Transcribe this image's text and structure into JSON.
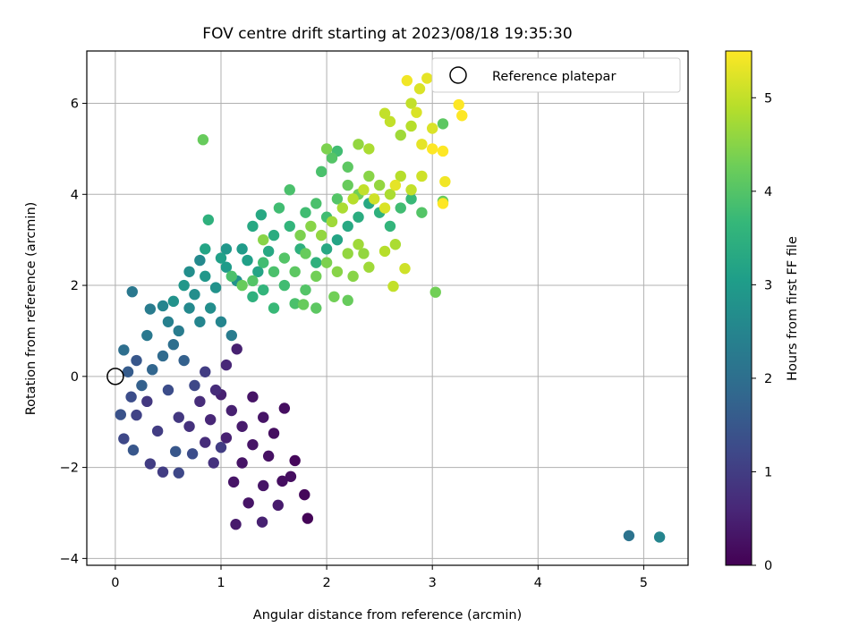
{
  "chart_data": {
    "type": "scatter",
    "title": "FOV centre drift starting at 2023/08/18 19:35:30",
    "xlabel": "Angular distance from reference (arcmin)",
    "ylabel": "Rotation from reference (arcmin)",
    "xlim": [
      -0.27,
      5.42
    ],
    "ylim": [
      -4.15,
      7.15
    ],
    "xticks": [
      0,
      1,
      2,
      3,
      4,
      5
    ],
    "yticks": [
      -4,
      -2,
      0,
      2,
      4,
      6
    ],
    "xtick_labels": [
      "0",
      "1",
      "2",
      "3",
      "4",
      "5"
    ],
    "ytick_labels": [
      "−4",
      "−2",
      "0",
      "2",
      "4",
      "6"
    ],
    "grid": true,
    "legend": {
      "placement": "top-right",
      "entries": [
        "Reference platepar"
      ]
    },
    "reference_point": {
      "x": 0,
      "y": 0,
      "label": "Reference platepar"
    },
    "colorbar": {
      "label": "Hours from first FF file",
      "colormap": "viridis",
      "range": [
        0,
        5.5
      ],
      "ticks": [
        0,
        1,
        2,
        3,
        4,
        5
      ],
      "tick_labels": [
        "0",
        "1",
        "2",
        "3",
        "4",
        "5"
      ],
      "stops": [
        "#440154",
        "#482878",
        "#3e4989",
        "#31688e",
        "#26828e",
        "#1f9e89",
        "#35b779",
        "#6ece58",
        "#b5de2b",
        "#fde725"
      ]
    },
    "series": [
      {
        "color_value_name": "Hours from first FF file",
        "points": [
          [
            0.83,
            5.2,
            4.2
          ],
          [
            1.79,
            -2.6,
            0.1
          ],
          [
            1.82,
            -3.12,
            0.05
          ],
          [
            1.14,
            -3.25,
            0.4
          ],
          [
            1.39,
            -3.2,
            0.5
          ],
          [
            1.54,
            -2.83,
            0.4
          ],
          [
            1.26,
            -2.78,
            0.3
          ],
          [
            1.12,
            -2.32,
            0.3
          ],
          [
            1.66,
            -2.2,
            0.2
          ],
          [
            1.7,
            -1.85,
            0.1
          ],
          [
            1.58,
            -2.3,
            0.2
          ],
          [
            1.4,
            -2.4,
            0.3
          ],
          [
            4.86,
            -3.5,
            2.1
          ],
          [
            5.15,
            -3.53,
            2.5
          ],
          [
            0.16,
            1.86,
            2.2
          ],
          [
            0.33,
            1.48,
            2.3
          ],
          [
            0.45,
            1.55,
            2.5
          ],
          [
            0.08,
            0.58,
            2.0
          ],
          [
            0.12,
            0.1,
            1.6
          ],
          [
            0.05,
            -0.84,
            1.4
          ],
          [
            0.08,
            -1.37,
            1.2
          ],
          [
            0.17,
            -1.62,
            1.5
          ],
          [
            0.33,
            -1.92,
            1.0
          ],
          [
            0.45,
            -2.1,
            1.0
          ],
          [
            0.6,
            -2.12,
            1.2
          ],
          [
            0.57,
            -1.65,
            1.5
          ],
          [
            0.73,
            -1.7,
            1.3
          ],
          [
            0.93,
            -1.9,
            0.8
          ],
          [
            1.0,
            -1.56,
            1.0
          ],
          [
            0.2,
            -0.85,
            1.1
          ],
          [
            0.3,
            -0.55,
            0.9
          ],
          [
            0.4,
            -1.2,
            1.0
          ],
          [
            0.5,
            -0.3,
            1.3
          ],
          [
            0.6,
            -0.9,
            0.9
          ],
          [
            0.7,
            -1.1,
            0.8
          ],
          [
            0.8,
            -0.55,
            0.7
          ],
          [
            0.9,
            -0.95,
            0.6
          ],
          [
            1.0,
            -0.4,
            0.5
          ],
          [
            1.1,
            -0.75,
            0.5
          ],
          [
            1.2,
            -1.1,
            0.4
          ],
          [
            1.3,
            -0.45,
            0.3
          ],
          [
            1.4,
            -0.9,
            0.3
          ],
          [
            1.5,
            -1.25,
            0.2
          ],
          [
            1.6,
            -0.7,
            0.2
          ],
          [
            1.3,
            -1.5,
            0.3
          ],
          [
            1.2,
            -1.9,
            0.3
          ],
          [
            1.45,
            -1.75,
            0.25
          ],
          [
            1.05,
            -1.35,
            0.5
          ],
          [
            0.85,
            -1.45,
            0.7
          ],
          [
            0.25,
            -0.2,
            1.7
          ],
          [
            0.35,
            0.15,
            1.8
          ],
          [
            0.45,
            0.45,
            1.9
          ],
          [
            0.55,
            0.7,
            2.0
          ],
          [
            0.65,
            0.35,
            1.7
          ],
          [
            0.75,
            -0.2,
            1.2
          ],
          [
            0.85,
            0.1,
            1.0
          ],
          [
            0.95,
            -0.3,
            0.7
          ],
          [
            1.05,
            0.25,
            0.6
          ],
          [
            1.15,
            0.6,
            0.5
          ],
          [
            0.2,
            0.35,
            1.5
          ],
          [
            0.15,
            -0.45,
            1.3
          ],
          [
            0.3,
            0.9,
            2.2
          ],
          [
            0.5,
            1.2,
            2.4
          ],
          [
            0.6,
            1.0,
            2.3
          ],
          [
            0.7,
            1.5,
            2.6
          ],
          [
            0.8,
            1.2,
            2.5
          ],
          [
            0.9,
            1.5,
            2.7
          ],
          [
            1.0,
            1.2,
            2.5
          ],
          [
            1.1,
            0.9,
            2.3
          ],
          [
            0.55,
            1.65,
            2.8
          ],
          [
            0.65,
            2.0,
            2.9
          ],
          [
            0.75,
            1.8,
            2.7
          ],
          [
            0.85,
            2.2,
            2.9
          ],
          [
            0.95,
            1.95,
            2.8
          ],
          [
            1.05,
            2.4,
            3.0
          ],
          [
            1.15,
            2.1,
            2.8
          ],
          [
            1.25,
            2.55,
            3.1
          ],
          [
            1.35,
            2.3,
            3.2
          ],
          [
            1.45,
            2.75,
            3.3
          ],
          [
            0.7,
            2.3,
            2.7
          ],
          [
            0.8,
            2.55,
            2.6
          ],
          [
            0.85,
            2.8,
            3.2
          ],
          [
            0.88,
            3.44,
            3.5
          ],
          [
            1.05,
            2.8,
            2.9
          ],
          [
            1.2,
            2.8,
            3.0
          ],
          [
            1.3,
            3.3,
            3.3
          ],
          [
            1.38,
            3.55,
            3.3
          ],
          [
            1.5,
            3.1,
            3.4
          ],
          [
            1.55,
            3.7,
            3.8
          ],
          [
            1.65,
            3.3,
            3.6
          ],
          [
            1.65,
            4.1,
            3.9
          ],
          [
            1.75,
            2.8,
            3.5
          ],
          [
            1.8,
            3.6,
            3.8
          ],
          [
            1.9,
            3.8,
            3.9
          ],
          [
            1.3,
            1.75,
            3.5
          ],
          [
            1.4,
            1.9,
            3.6
          ],
          [
            1.5,
            1.5,
            3.7
          ],
          [
            1.6,
            2.0,
            3.8
          ],
          [
            1.7,
            1.6,
            3.9
          ],
          [
            1.8,
            1.9,
            4.0
          ],
          [
            1.9,
            1.5,
            4.1
          ],
          [
            1.78,
            1.58,
            4.2
          ],
          [
            2.07,
            1.75,
            4.3
          ],
          [
            2.2,
            1.67,
            4.2
          ],
          [
            1.9,
            2.5,
            3.5
          ],
          [
            2.0,
            2.8,
            3.3
          ],
          [
            2.1,
            3.0,
            3.2
          ],
          [
            2.2,
            3.3,
            3.3
          ],
          [
            2.3,
            3.5,
            3.4
          ],
          [
            2.4,
            3.8,
            3.3
          ],
          [
            2.5,
            3.6,
            3.5
          ],
          [
            2.6,
            3.3,
            3.6
          ],
          [
            2.7,
            3.7,
            3.8
          ],
          [
            2.8,
            3.9,
            3.7
          ],
          [
            2.0,
            3.5,
            3.8
          ],
          [
            2.1,
            3.9,
            4.0
          ],
          [
            2.2,
            4.2,
            4.2
          ],
          [
            2.3,
            4.0,
            4.3
          ],
          [
            2.4,
            4.4,
            4.5
          ],
          [
            2.5,
            4.2,
            4.6
          ],
          [
            2.6,
            4.0,
            4.8
          ],
          [
            2.7,
            4.4,
            4.9
          ],
          [
            2.8,
            4.1,
            5.0
          ],
          [
            2.9,
            4.4,
            5.1
          ],
          [
            1.95,
            4.5,
            3.9
          ],
          [
            2.05,
            4.8,
            4.0
          ],
          [
            2.1,
            4.95,
            3.8
          ],
          [
            2.2,
            4.6,
            4.1
          ],
          [
            2.0,
            5.0,
            4.4
          ],
          [
            2.3,
            5.1,
            4.6
          ],
          [
            2.4,
            5.0,
            4.8
          ],
          [
            2.55,
            5.78,
            5.0
          ],
          [
            2.6,
            5.6,
            5.0
          ],
          [
            2.7,
            5.3,
            4.7
          ],
          [
            2.8,
            5.5,
            4.9
          ],
          [
            2.85,
            5.8,
            5.2
          ],
          [
            2.9,
            5.1,
            5.3
          ],
          [
            3.0,
            5.45,
            5.2
          ],
          [
            3.1,
            5.55,
            4.1
          ],
          [
            2.8,
            6.0,
            5.0
          ],
          [
            2.88,
            6.32,
            5.2
          ],
          [
            2.95,
            6.55,
            5.3
          ],
          [
            2.76,
            6.5,
            5.4
          ],
          [
            3.0,
            5.0,
            5.5
          ],
          [
            3.1,
            4.95,
            5.5
          ],
          [
            3.25,
            5.97,
            5.5
          ],
          [
            3.28,
            5.73,
            5.5
          ],
          [
            3.12,
            4.28,
            5.4
          ],
          [
            3.1,
            3.8,
            5.5
          ],
          [
            3.1,
            3.85,
            4.2
          ],
          [
            3.03,
            1.85,
            4.3
          ],
          [
            2.63,
            1.98,
            5.0
          ],
          [
            2.74,
            2.37,
            5.1
          ],
          [
            2.55,
            2.75,
            4.9
          ],
          [
            2.4,
            2.4,
            4.7
          ],
          [
            2.25,
            2.2,
            4.5
          ],
          [
            2.35,
            2.7,
            4.6
          ],
          [
            2.65,
            2.9,
            4.8
          ],
          [
            2.9,
            3.6,
            4.0
          ],
          [
            1.5,
            2.3,
            3.9
          ],
          [
            1.4,
            2.5,
            3.8
          ],
          [
            1.6,
            2.6,
            4.0
          ],
          [
            1.7,
            2.3,
            4.1
          ],
          [
            1.8,
            2.7,
            4.2
          ],
          [
            1.9,
            2.2,
            4.3
          ],
          [
            2.0,
            2.5,
            4.4
          ],
          [
            2.1,
            2.3,
            4.5
          ],
          [
            2.2,
            2.7,
            4.6
          ],
          [
            2.3,
            2.9,
            4.7
          ],
          [
            1.75,
            3.1,
            4.4
          ],
          [
            1.85,
            3.3,
            4.5
          ],
          [
            1.95,
            3.1,
            4.6
          ],
          [
            2.05,
            3.4,
            4.7
          ],
          [
            2.15,
            3.7,
            4.8
          ],
          [
            2.25,
            3.9,
            4.9
          ],
          [
            2.35,
            4.1,
            5.0
          ],
          [
            2.45,
            3.9,
            5.1
          ],
          [
            2.55,
            3.7,
            5.2
          ],
          [
            2.65,
            4.2,
            5.3
          ],
          [
            1.4,
            3.0,
            4.5
          ],
          [
            1.3,
            2.1,
            4.0
          ],
          [
            1.2,
            2.0,
            4.2
          ],
          [
            1.1,
            2.2,
            3.9
          ],
          [
            1.0,
            2.6,
            3.1
          ]
        ]
      }
    ]
  }
}
